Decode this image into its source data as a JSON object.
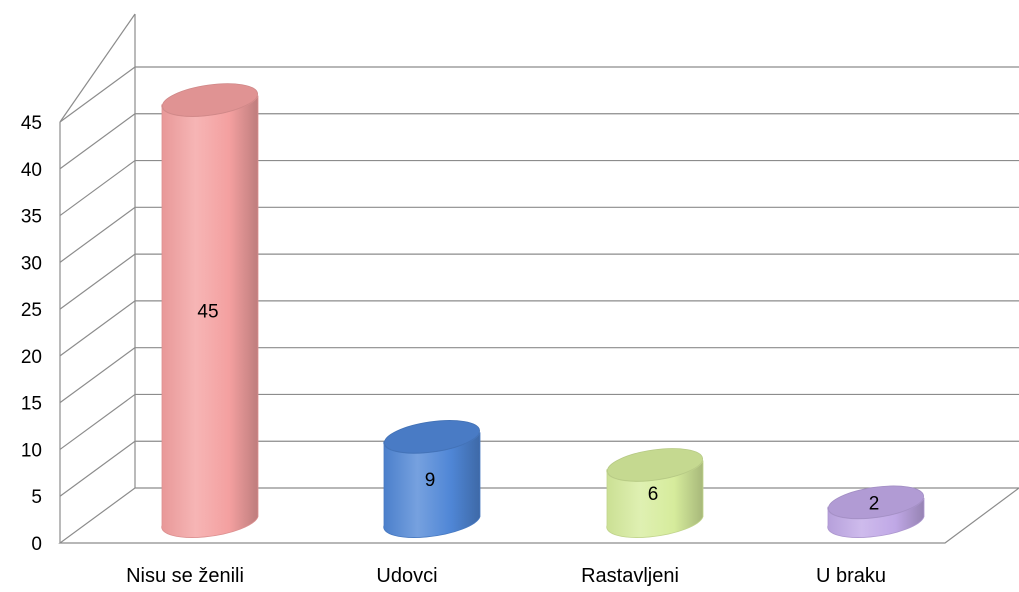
{
  "chart_data": {
    "type": "bar",
    "style": "3d-cylinder",
    "categories": [
      "Nisu se ženili",
      "Udovci",
      "Rastavljeni",
      "U braku"
    ],
    "values": [
      45,
      9,
      6,
      2
    ],
    "data_labels": [
      "45",
      "9",
      "6",
      "2"
    ],
    "colors": [
      "#f4a0a0",
      "#4f86d6",
      "#d6ec9c",
      "#c0a8e6"
    ],
    "ylim": [
      0,
      45
    ],
    "ytick_values": [
      0,
      5,
      10,
      15,
      20,
      25,
      30,
      35,
      40,
      45
    ],
    "ytick_labels": [
      "0",
      "5",
      "10",
      "15",
      "20",
      "25",
      "30",
      "35",
      "40",
      "45"
    ],
    "grid": true,
    "legend": false,
    "title": "",
    "xlabel": "",
    "ylabel": ""
  }
}
